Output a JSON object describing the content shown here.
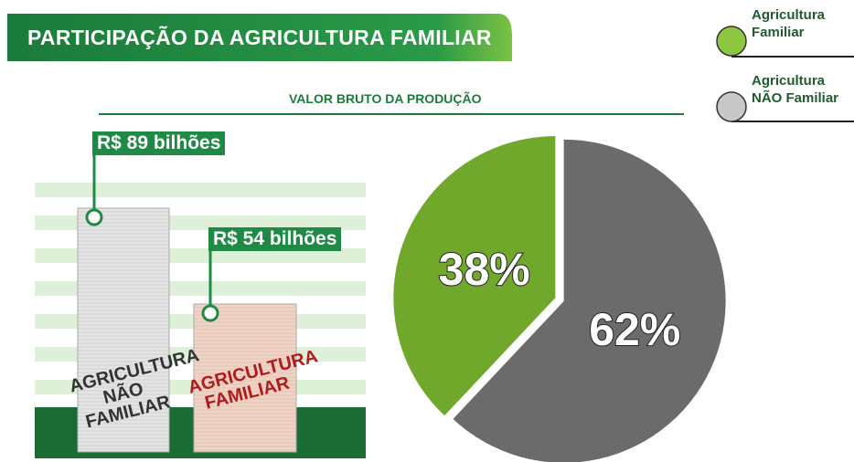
{
  "title": "PARTICIPAÇÃO DA AGRICULTURA FAMILIAR",
  "subtitle": "VALOR BRUTO DA PRODUÇÃO",
  "chart_data": [
    {
      "type": "bar",
      "categories": [
        "AGRICULTURA NÃO FAMILIAR",
        "AGRICULTURA FAMILIAR"
      ],
      "values": [
        89,
        54
      ],
      "value_labels": [
        "R$ 89 bilhões",
        "R$ 54 bilhões"
      ],
      "colors": [
        "#e4e4e4",
        "#f3d2c2"
      ],
      "label_colors": [
        "#333333",
        "#b01c1c"
      ]
    },
    {
      "type": "pie",
      "categories": [
        "Agricultura Familiar",
        "Agricultura NÃO Familiar"
      ],
      "values": [
        38,
        62
      ],
      "value_labels": [
        "38%",
        "62%"
      ],
      "colors": [
        "#6fa82a",
        "#6b6b6b"
      ],
      "legend_colors": [
        "#8dc63f",
        "#c8c8c8"
      ]
    }
  ]
}
